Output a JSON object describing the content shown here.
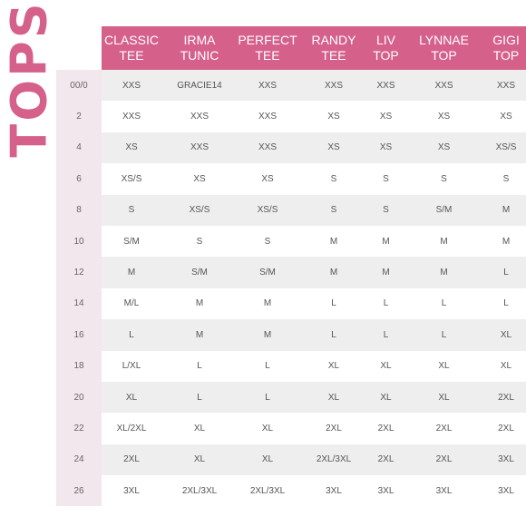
{
  "title": "TOPS",
  "columns": [
    {
      "line1": "CLASSIC",
      "line2": "TEE"
    },
    {
      "line1": "IRMA",
      "line2": "TUNIC"
    },
    {
      "line1": "PERFECT",
      "line2": "TEE"
    },
    {
      "line1": "RANDY",
      "line2": "TEE"
    },
    {
      "line1": "LIV",
      "line2": "TOP"
    },
    {
      "line1": "LYNNAE",
      "line2": "TOP"
    },
    {
      "line1": "GIGI",
      "line2": "TOP"
    }
  ],
  "rows": [
    {
      "size": "00/0",
      "values": [
        "XXS",
        "GRACIE14",
        "XXS",
        "XXS",
        "XXS",
        "XXS",
        "XXS"
      ]
    },
    {
      "size": "2",
      "values": [
        "XXS",
        "XXS",
        "XXS",
        "XS",
        "XS",
        "XS",
        "XS"
      ]
    },
    {
      "size": "4",
      "values": [
        "XS",
        "XXS",
        "XXS",
        "XS",
        "XS",
        "XS",
        "XS/S"
      ]
    },
    {
      "size": "6",
      "values": [
        "XS/S",
        "XS",
        "XS",
        "S",
        "S",
        "S",
        "S"
      ]
    },
    {
      "size": "8",
      "values": [
        "S",
        "XS/S",
        "XS/S",
        "S",
        "S",
        "S/M",
        "M"
      ]
    },
    {
      "size": "10",
      "values": [
        "S/M",
        "S",
        "S",
        "M",
        "M",
        "M",
        "M"
      ]
    },
    {
      "size": "12",
      "values": [
        "M",
        "S/M",
        "S/M",
        "M",
        "M",
        "M",
        "L"
      ]
    },
    {
      "size": "14",
      "values": [
        "M/L",
        "M",
        "M",
        "L",
        "L",
        "L",
        "L"
      ]
    },
    {
      "size": "16",
      "values": [
        "L",
        "M",
        "M",
        "L",
        "L",
        "L",
        "XL"
      ]
    },
    {
      "size": "18",
      "values": [
        "L/XL",
        "L",
        "L",
        "XL",
        "XL",
        "XL",
        "XL"
      ]
    },
    {
      "size": "20",
      "values": [
        "XL",
        "L",
        "L",
        "XL",
        "XL",
        "XL",
        "2XL"
      ]
    },
    {
      "size": "22",
      "values": [
        "XL/2XL",
        "XL",
        "XL",
        "2XL",
        "2XL",
        "2XL",
        "2XL"
      ]
    },
    {
      "size": "24",
      "values": [
        "2XL",
        "XL",
        "XL",
        "2XL/3XL",
        "2XL",
        "2XL",
        "3XL"
      ]
    },
    {
      "size": "26",
      "values": [
        "3XL",
        "2XL/3XL",
        "2XL/3XL",
        "3XL",
        "3XL",
        "3XL",
        "3XL"
      ]
    }
  ],
  "colors": {
    "accent": "#d5608a",
    "size_col_bg": "#f2e7ec",
    "band_bg": "#eeeeee",
    "text": "#555555"
  }
}
